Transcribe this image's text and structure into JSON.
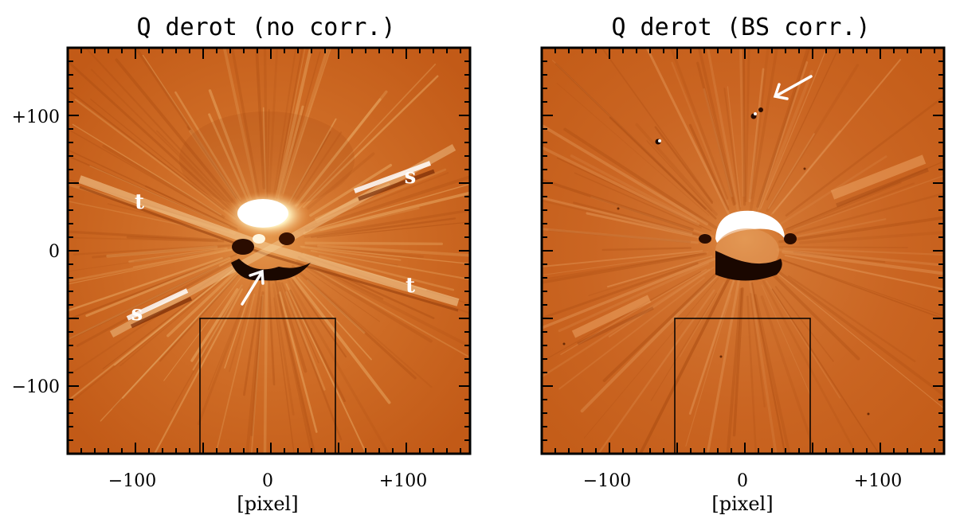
{
  "panels": [
    {
      "title": "Q derot (no corr.)",
      "xlabel": "[pixel]",
      "x_ticks": [
        "−100",
        "0",
        "+100"
      ],
      "y_ticks": [
        "+100",
        "0",
        "−100"
      ],
      "annotations": [
        "t",
        "s",
        "s",
        "t"
      ]
    },
    {
      "title": "Q derot (BS corr.)",
      "xlabel": "[pixel]",
      "x_ticks": [
        "−100",
        "0",
        "+100"
      ],
      "annotations": []
    }
  ],
  "colors": {
    "background": "#c8621c",
    "frame": "#000000",
    "highlight": "#ffffff"
  }
}
